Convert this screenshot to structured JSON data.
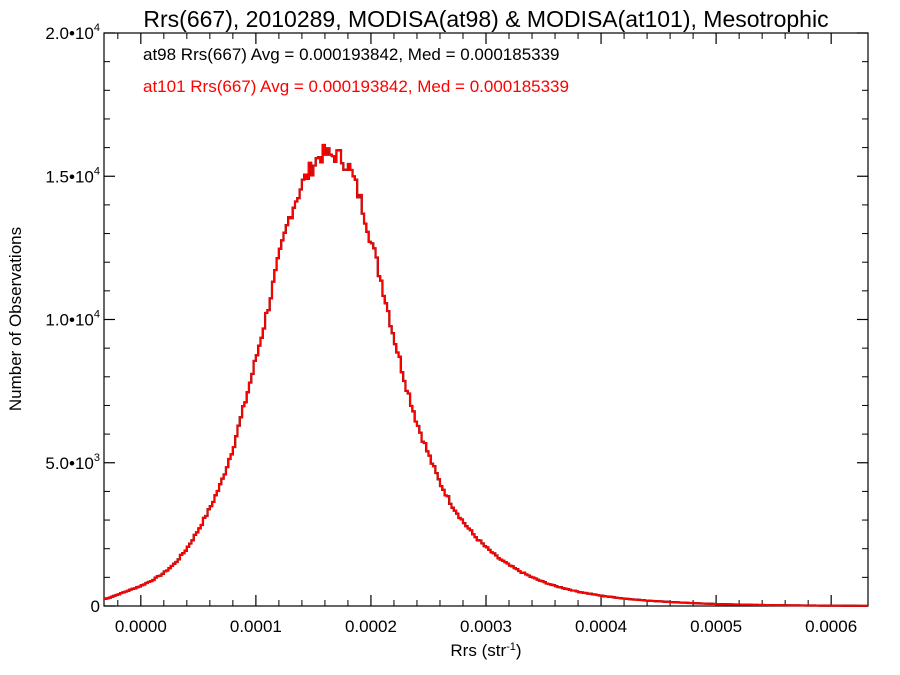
{
  "chart_data": {
    "type": "histogram-step",
    "title": "Rrs(667), 2010289, MODISA(at98) & MODISA(at101), Mesotrophic",
    "xlabel": "Rrs (str",
    "xlabel_sup": "-1",
    "xlabel_tail": ")",
    "ylabel": "Number of Observations",
    "xlim": [
      -3.2e-05,
      0.000632
    ],
    "ylim": [
      0,
      20000
    ],
    "x_ticks": [
      {
        "value": 0.0,
        "label": "0.0000"
      },
      {
        "value": 0.0001,
        "label": "0.0001"
      },
      {
        "value": 0.0002,
        "label": "0.0002"
      },
      {
        "value": 0.0003,
        "label": "0.0003"
      },
      {
        "value": 0.0004,
        "label": "0.0004"
      },
      {
        "value": 0.0005,
        "label": "0.0005"
      },
      {
        "value": 0.0006,
        "label": "0.0006"
      }
    ],
    "y_ticks": [
      {
        "value": 0,
        "base": "0",
        "exp": ""
      },
      {
        "value": 5000,
        "base": "5.0•10",
        "exp": "3"
      },
      {
        "value": 10000,
        "base": "1.0•10",
        "exp": "4"
      },
      {
        "value": 15000,
        "base": "1.5•10",
        "exp": "4"
      },
      {
        "value": 20000,
        "base": "2.0•10",
        "exp": "4"
      }
    ],
    "annotations": [
      {
        "text": "at98 Rrs(667) Avg = 0.000193842, Med = 0.000185339",
        "color": "#000000"
      },
      {
        "text": "at101 Rrs(667) Avg = 0.000193842, Med = 0.000185339",
        "color": "#ff0000"
      }
    ],
    "series": [
      {
        "name": "at98",
        "color": "#000000"
      },
      {
        "name": "at101",
        "color": "#ff0000"
      }
    ],
    "x": [
      -3e-05,
      -2e-05,
      -1e-05,
      0.0,
      1e-05,
      2e-05,
      3e-05,
      4e-05,
      5e-05,
      6e-05,
      7e-05,
      8e-05,
      9e-05,
      0.0001,
      0.00011,
      0.00012,
      0.00013,
      0.00014,
      0.00015,
      0.000155,
      0.00016,
      0.000165,
      0.00017,
      0.000175,
      0.00018,
      0.000185,
      0.00019,
      0.000195,
      0.0002,
      0.00021,
      0.00022,
      0.00023,
      0.00024,
      0.00025,
      0.00026,
      0.00027,
      0.00028,
      0.00029,
      0.0003,
      0.00031,
      0.00032,
      0.00033,
      0.00034,
      0.00035,
      0.00036,
      0.00038,
      0.0004,
      0.00042,
      0.00044,
      0.00046,
      0.00048,
      0.0005,
      0.00052,
      0.00054,
      0.00056,
      0.00058,
      0.0006,
      0.00062,
      0.000632
    ],
    "y": [
      250,
      400,
      550,
      700,
      900,
      1150,
      1500,
      2000,
      2650,
      3400,
      4300,
      5500,
      7000,
      8600,
      10300,
      12100,
      13700,
      14700,
      15400,
      15700,
      15800,
      15700,
      15750,
      15600,
      15400,
      14900,
      14300,
      13600,
      12800,
      11200,
      9400,
      7800,
      6400,
      5300,
      4300,
      3550,
      2950,
      2450,
      2050,
      1700,
      1430,
      1200,
      1000,
      840,
      700,
      500,
      360,
      260,
      190,
      140,
      100,
      70,
      50,
      35,
      25,
      18,
      12,
      8,
      5
    ]
  }
}
